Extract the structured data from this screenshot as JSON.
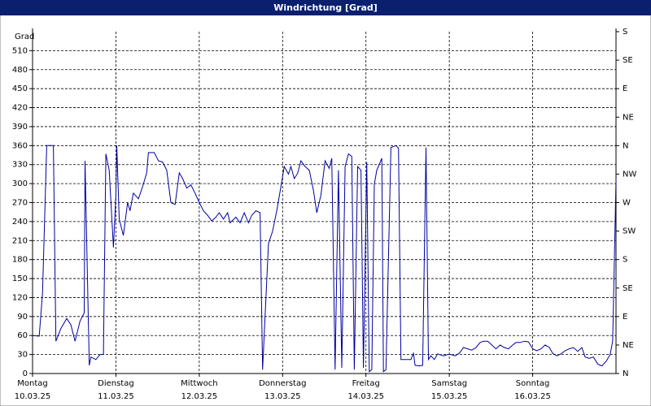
{
  "chart_data": {
    "type": "line",
    "title": "Windrichtung [Grad]",
    "y_label": "Grad",
    "grid": true,
    "xlim": [
      0,
      7
    ],
    "xticks": [
      {
        "value": 0,
        "label": [
          "Montag",
          "10.03.25"
        ]
      },
      {
        "value": 1,
        "label": [
          "Dienstag",
          "11.03.25"
        ]
      },
      {
        "value": 2,
        "label": [
          "Mittwoch",
          "12.03.25"
        ]
      },
      {
        "value": 3,
        "label": [
          "Donnerstag",
          "13.03.25"
        ]
      },
      {
        "value": 4,
        "label": [
          "Freitag",
          "14.03.25"
        ]
      },
      {
        "value": 5,
        "label": [
          "Samstag",
          "15.03.25"
        ]
      },
      {
        "value": 6,
        "label": [
          "Sonntag",
          "16.03.25"
        ]
      }
    ],
    "ylim": [
      0,
      540
    ],
    "yticks": [
      0,
      30,
      60,
      90,
      120,
      150,
      180,
      210,
      240,
      270,
      300,
      330,
      360,
      390,
      420,
      450,
      480,
      510
    ],
    "y2lim": [
      0,
      540
    ],
    "y2ticks": [
      {
        "value": 0,
        "label": "N"
      },
      {
        "value": 45,
        "label": "NE"
      },
      {
        "value": 90,
        "label": "E"
      },
      {
        "value": 135,
        "label": "SE"
      },
      {
        "value": 180,
        "label": "S"
      },
      {
        "value": 225,
        "label": "SW"
      },
      {
        "value": 270,
        "label": "W"
      },
      {
        "value": 315,
        "label": "NW"
      },
      {
        "value": 360,
        "label": "N"
      },
      {
        "value": 405,
        "label": "NE"
      },
      {
        "value": 450,
        "label": "E"
      },
      {
        "value": 495,
        "label": "SE"
      },
      {
        "value": 540,
        "label": "S"
      }
    ],
    "x": [
      0,
      0.08,
      0.12,
      0.17,
      0.25,
      0.28,
      0.34,
      0.41,
      0.46,
      0.51,
      0.57,
      0.62,
      0.63,
      0.68,
      0.7,
      0.76,
      0.81,
      0.85,
      0.88,
      0.92,
      0.97,
      1.0,
      1.01,
      1.04,
      1.09,
      1.14,
      1.17,
      1.21,
      1.27,
      1.32,
      1.37,
      1.39,
      1.46,
      1.51,
      1.56,
      1.61,
      1.66,
      1.71,
      1.76,
      1.8,
      1.85,
      1.9,
      1.95,
      2.0,
      2.05,
      2.1,
      2.15,
      2.2,
      2.24,
      2.29,
      2.34,
      2.37,
      2.44,
      2.49,
      2.54,
      2.59,
      2.63,
      2.68,
      2.73,
      2.76,
      2.83,
      2.88,
      2.93,
      2.98,
      3.02,
      3.07,
      3.1,
      3.14,
      3.18,
      3.22,
      3.27,
      3.32,
      3.37,
      3.41,
      3.46,
      3.51,
      3.56,
      3.59,
      3.63,
      3.67,
      3.71,
      3.75,
      3.79,
      3.83,
      3.86,
      3.9,
      3.94,
      3.97,
      4.01,
      4.04,
      4.07,
      4.1,
      4.13,
      4.19,
      4.21,
      4.24,
      4.3,
      4.36,
      4.39,
      4.42,
      4.49,
      4.54,
      4.57,
      4.59,
      4.64,
      4.68,
      4.72,
      4.75,
      4.78,
      4.82,
      4.86,
      4.93,
      4.98,
      5.02,
      5.07,
      5.12,
      5.17,
      5.22,
      5.27,
      5.32,
      5.37,
      5.41,
      5.46,
      5.51,
      5.56,
      5.61,
      5.66,
      5.71,
      5.76,
      5.8,
      5.85,
      5.9,
      5.95,
      6.0,
      6.05,
      6.1,
      6.15,
      6.2,
      6.24,
      6.29,
      6.34,
      6.39,
      6.44,
      6.49,
      6.54,
      6.59,
      6.63,
      6.68,
      6.73,
      6.78,
      6.83,
      6.88,
      6.93,
      6.96,
      7.0
    ],
    "series": [
      {
        "color": "#0000a0",
        "values": [
          60,
          59,
          128,
          360,
          360,
          51,
          71,
          87,
          77,
          51,
          83,
          96,
          336,
          13,
          26,
          22,
          30,
          30,
          347,
          321,
          199,
          282,
          360,
          244,
          218,
          270,
          257,
          285,
          276,
          295,
          317,
          349,
          349,
          336,
          334,
          321,
          270,
          267,
          317,
          308,
          293,
          298,
          285,
          270,
          257,
          250,
          241,
          247,
          254,
          244,
          254,
          238,
          247,
          238,
          254,
          238,
          250,
          257,
          254,
          6,
          205,
          225,
          257,
          295,
          327,
          315,
          327,
          308,
          316,
          336,
          327,
          321,
          289,
          254,
          282,
          336,
          324,
          340,
          6,
          321,
          9,
          327,
          347,
          343,
          6,
          327,
          321,
          9,
          334,
          3,
          6,
          299,
          321,
          340,
          3,
          6,
          357,
          360,
          356,
          22,
          22,
          22,
          32,
          13,
          12,
          13,
          357,
          22,
          28,
          22,
          31,
          28,
          30,
          30,
          28,
          32,
          41,
          39,
          37,
          41,
          49,
          51,
          51,
          45,
          39,
          45,
          41,
          39,
          45,
          49,
          49,
          51,
          50,
          39,
          36,
          39,
          45,
          41,
          32,
          28,
          31,
          36,
          39,
          41,
          35,
          41,
          26,
          24,
          26,
          15,
          12,
          19,
          30,
          51,
          306
        ]
      }
    ]
  }
}
